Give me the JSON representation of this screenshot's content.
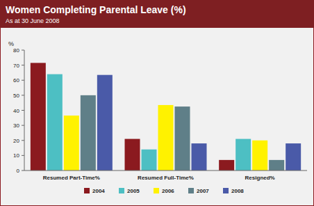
{
  "chart_data": {
    "type": "bar",
    "title": "Women Completing Parental Leave (%)",
    "subtitle": "As at 30 June 2008",
    "ylabel": "%",
    "categories": [
      "Resumed Part-Time%",
      "Resumed Full-Time%",
      "Resigned%"
    ],
    "series": [
      {
        "name": "2004",
        "color": "#8b1a1f",
        "values": [
          71.5,
          21,
          7
        ]
      },
      {
        "name": "2005",
        "color": "#4dbfc3",
        "values": [
          64,
          14,
          21
        ]
      },
      {
        "name": "2006",
        "color": "#fff200",
        "values": [
          36.5,
          43.5,
          20
        ]
      },
      {
        "name": "2007",
        "color": "#5f7f88",
        "values": [
          50,
          42.5,
          7
        ]
      },
      {
        "name": "2008",
        "color": "#4a5aa8",
        "values": [
          63.5,
          18,
          18
        ]
      }
    ],
    "ylim": [
      0,
      80
    ],
    "yticks": [
      0,
      10,
      20,
      30,
      40,
      50,
      60,
      70,
      80
    ],
    "grid": false,
    "legend": "bottom"
  }
}
